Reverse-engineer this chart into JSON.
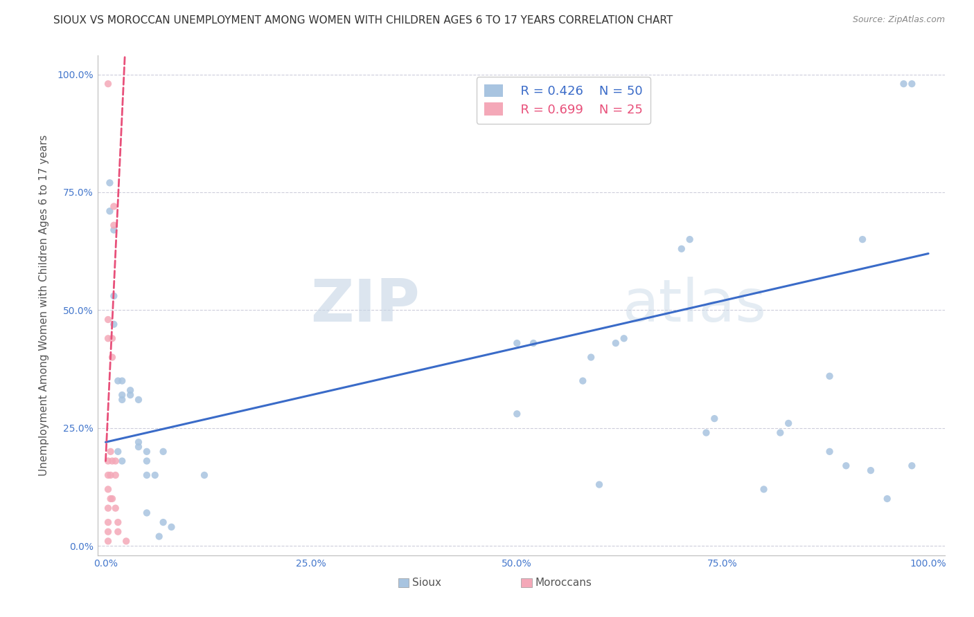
{
  "title": "SIOUX VS MOROCCAN UNEMPLOYMENT AMONG WOMEN WITH CHILDREN AGES 6 TO 17 YEARS CORRELATION CHART",
  "source": "Source: ZipAtlas.com",
  "ylabel": "Unemployment Among Women with Children Ages 6 to 17 years",
  "xlabel": "",
  "watermark_zip": "ZIP",
  "watermark_atlas": "atlas",
  "xlim": [
    0,
    1
  ],
  "ylim": [
    0,
    1
  ],
  "xticks": [
    0.0,
    0.25,
    0.5,
    0.75,
    1.0
  ],
  "yticks": [
    0.0,
    0.25,
    0.5,
    0.75,
    1.0
  ],
  "xtick_labels": [
    "0.0%",
    "25.0%",
    "50.0%",
    "75.0%",
    "100.0%"
  ],
  "ytick_labels": [
    "0.0%",
    "25.0%",
    "50.0%",
    "75.0%",
    "100.0%"
  ],
  "sioux_R": 0.426,
  "sioux_N": 50,
  "moroccan_R": 0.699,
  "moroccan_N": 25,
  "sioux_color": "#A8C4E0",
  "moroccan_color": "#F4A8B8",
  "sioux_line_color": "#3A6BC8",
  "moroccan_line_color": "#E8507A",
  "sioux_x": [
    0.005,
    0.005,
    0.01,
    0.01,
    0.01,
    0.015,
    0.015,
    0.02,
    0.02,
    0.02,
    0.02,
    0.03,
    0.03,
    0.04,
    0.04,
    0.04,
    0.05,
    0.05,
    0.05,
    0.05,
    0.06,
    0.065,
    0.07,
    0.07,
    0.08,
    0.12,
    0.5,
    0.52,
    0.58,
    0.59,
    0.62,
    0.63,
    0.7,
    0.71,
    0.73,
    0.74,
    0.82,
    0.83,
    0.88,
    0.88,
    0.9,
    0.92,
    0.93,
    0.95,
    0.97,
    0.98,
    0.98,
    0.5,
    0.6,
    0.8
  ],
  "sioux_y": [
    0.77,
    0.71,
    0.67,
    0.53,
    0.47,
    0.35,
    0.2,
    0.32,
    0.31,
    0.18,
    0.35,
    0.33,
    0.32,
    0.31,
    0.22,
    0.21,
    0.2,
    0.18,
    0.15,
    0.07,
    0.15,
    0.02,
    0.2,
    0.05,
    0.04,
    0.15,
    0.43,
    0.43,
    0.35,
    0.4,
    0.43,
    0.44,
    0.63,
    0.65,
    0.24,
    0.27,
    0.24,
    0.26,
    0.2,
    0.36,
    0.17,
    0.65,
    0.16,
    0.1,
    0.98,
    0.98,
    0.17,
    0.28,
    0.13,
    0.12
  ],
  "moroccan_x": [
    0.003,
    0.003,
    0.003,
    0.003,
    0.003,
    0.003,
    0.003,
    0.003,
    0.003,
    0.003,
    0.006,
    0.006,
    0.006,
    0.008,
    0.008,
    0.008,
    0.008,
    0.01,
    0.01,
    0.012,
    0.012,
    0.012,
    0.015,
    0.015,
    0.025
  ],
  "moroccan_y": [
    0.98,
    0.48,
    0.44,
    0.18,
    0.15,
    0.12,
    0.08,
    0.05,
    0.03,
    0.01,
    0.2,
    0.15,
    0.1,
    0.44,
    0.4,
    0.18,
    0.1,
    0.72,
    0.68,
    0.18,
    0.15,
    0.08,
    0.05,
    0.03,
    0.01
  ],
  "background_color": "#FFFFFF",
  "grid_color": "#C8C8D8",
  "title_fontsize": 11,
  "label_fontsize": 11,
  "tick_fontsize": 10,
  "legend_fontsize": 13,
  "marker_size": 55
}
